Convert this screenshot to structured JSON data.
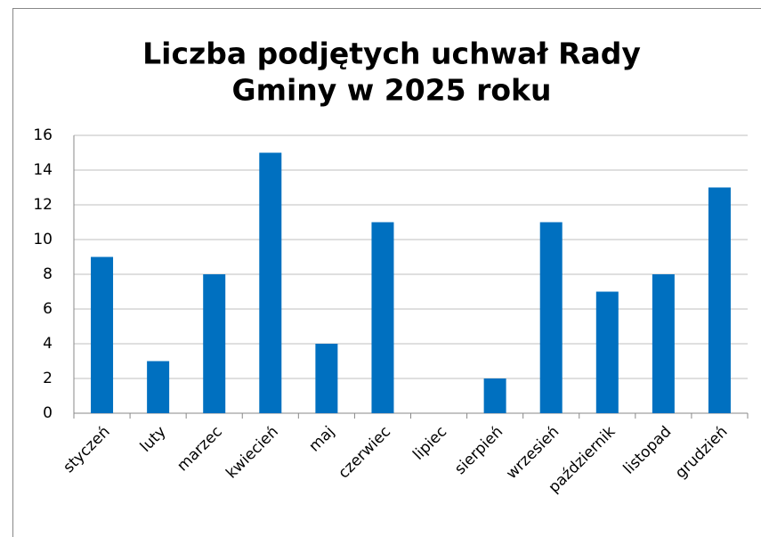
{
  "chart_data": {
    "type": "bar",
    "title": [
      "Liczba podjętych uchwał Rady",
      "Gminy w 2025 roku"
    ],
    "categories": [
      "styczeń",
      "luty",
      "marzec",
      "kwiecień",
      "maj",
      "czerwiec",
      "lipiec",
      "sierpień",
      "wrzesień",
      "październik",
      "listopad",
      "grudzień"
    ],
    "values": [
      9,
      3,
      8,
      15,
      4,
      11,
      0,
      2,
      11,
      7,
      8,
      13
    ],
    "color": "#0070c0",
    "ylim": [
      0,
      16
    ],
    "yticks": [
      0,
      2,
      4,
      6,
      8,
      10,
      12,
      14,
      16
    ],
    "grid": true
  }
}
